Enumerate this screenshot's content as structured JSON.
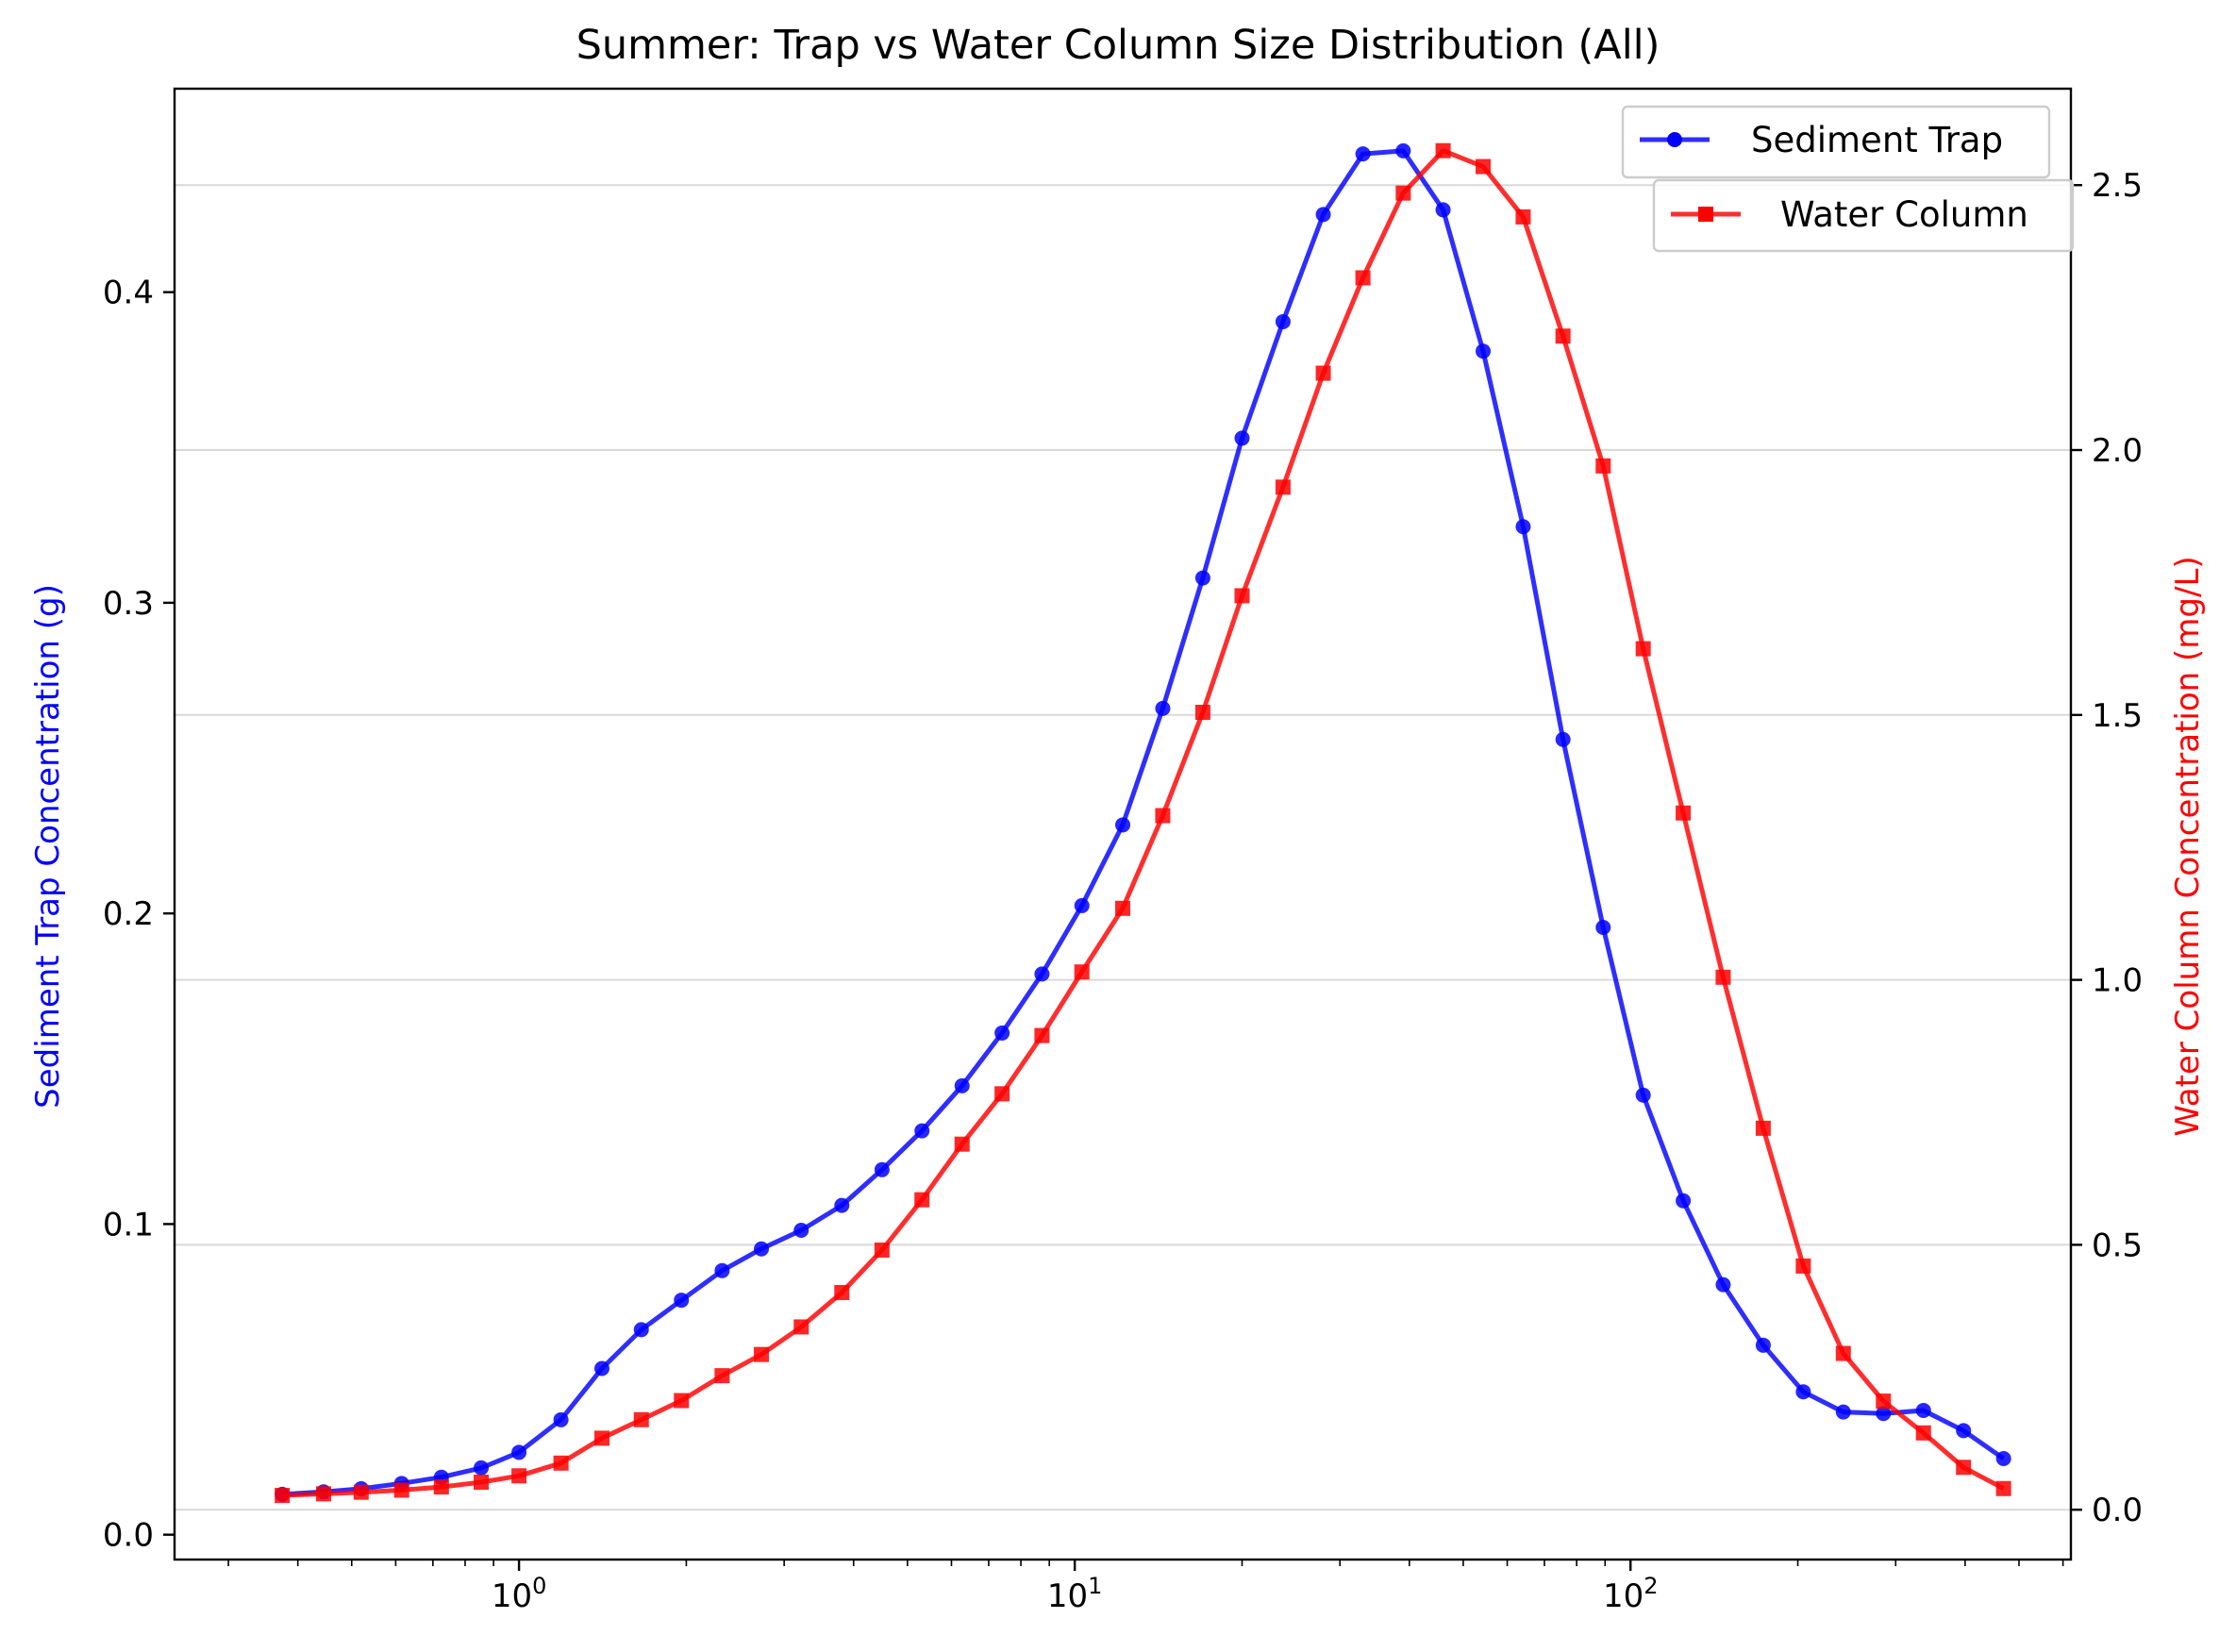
{
  "chart_data": {
    "type": "line",
    "title": "Summer: Trap vs Water Column Size Distribution (All)",
    "xlabel": "",
    "xscale": "log",
    "xlim": [
      0.24,
      620
    ],
    "x_ticks": [
      {
        "value": 1,
        "base": "10",
        "exp": "0"
      },
      {
        "value": 10,
        "base": "10",
        "exp": "1"
      },
      {
        "value": 100,
        "base": "10",
        "exp": "2"
      }
    ],
    "y_left": {
      "label": "Sediment Trap Concentration (g)",
      "color": "#0000ff",
      "lim": [
        -0.008,
        0.4655
      ],
      "ticks": [
        0.0,
        0.1,
        0.2,
        0.3,
        0.4
      ],
      "tick_labels": [
        "0.0",
        "0.1",
        "0.2",
        "0.3",
        "0.4"
      ]
    },
    "y_right": {
      "label": "Water Column Concentration (mg/L)",
      "color": "#ff0000",
      "lim": [
        -0.094,
        2.682
      ],
      "ticks": [
        0.0,
        0.5,
        1.0,
        1.5,
        2.0,
        2.5
      ],
      "tick_labels": [
        "0.0",
        "0.5",
        "1.0",
        "1.5",
        "2.0",
        "2.5"
      ]
    },
    "grid": "horizontal lines at right-axis ticks",
    "x": [
      0.375,
      0.445,
      0.52,
      0.615,
      0.725,
      0.855,
      1.0,
      1.19,
      1.41,
      1.66,
      1.96,
      2.32,
      2.73,
      3.22,
      3.81,
      4.5,
      5.31,
      6.27,
      7.4,
      8.73,
      10.3,
      12.2,
      14.4,
      17.0,
      20.0,
      23.7,
      28.0,
      33.0,
      39.0,
      46.0,
      54.3,
      64.1,
      75.6,
      89.3,
      105.4,
      124.4,
      146.8,
      173.3,
      204.6,
      241.5,
      285.1,
      336.6,
      397.4,
      469.1
    ],
    "series": [
      {
        "name": "Sediment Trap",
        "axis": "left",
        "color": "#0000ff",
        "marker": "circle",
        "values": [
          0.013,
          0.0138,
          0.0148,
          0.0165,
          0.0185,
          0.0215,
          0.0265,
          0.037,
          0.0535,
          0.066,
          0.0755,
          0.085,
          0.092,
          0.098,
          0.106,
          0.1175,
          0.13,
          0.1445,
          0.1615,
          0.1805,
          0.2025,
          0.2285,
          0.266,
          0.308,
          0.353,
          0.3905,
          0.425,
          0.4445,
          0.4455,
          0.4265,
          0.381,
          0.3245,
          0.256,
          0.1955,
          0.1415,
          0.1075,
          0.0805,
          0.061,
          0.046,
          0.0395,
          0.039,
          0.04,
          0.0335,
          0.0245
        ]
      },
      {
        "name": "Water Column",
        "axis": "right",
        "color": "#ff0000",
        "marker": "square",
        "values": [
          0.027,
          0.03,
          0.033,
          0.037,
          0.043,
          0.052,
          0.064,
          0.088,
          0.135,
          0.17,
          0.206,
          0.253,
          0.293,
          0.345,
          0.41,
          0.49,
          0.585,
          0.69,
          0.785,
          0.895,
          1.015,
          1.135,
          1.31,
          1.505,
          1.725,
          1.93,
          2.145,
          2.325,
          2.485,
          2.565,
          2.535,
          2.44,
          2.215,
          1.97,
          1.625,
          1.315,
          1.005,
          0.72,
          0.46,
          0.295,
          0.205,
          0.145,
          0.08,
          0.04
        ]
      }
    ],
    "legend": [
      {
        "label": "Sediment Trap",
        "color": "#0000ff",
        "marker": "circle"
      },
      {
        "label": "Water Column",
        "color": "#ff0000",
        "marker": "square"
      }
    ],
    "legend_position": "top-right"
  }
}
